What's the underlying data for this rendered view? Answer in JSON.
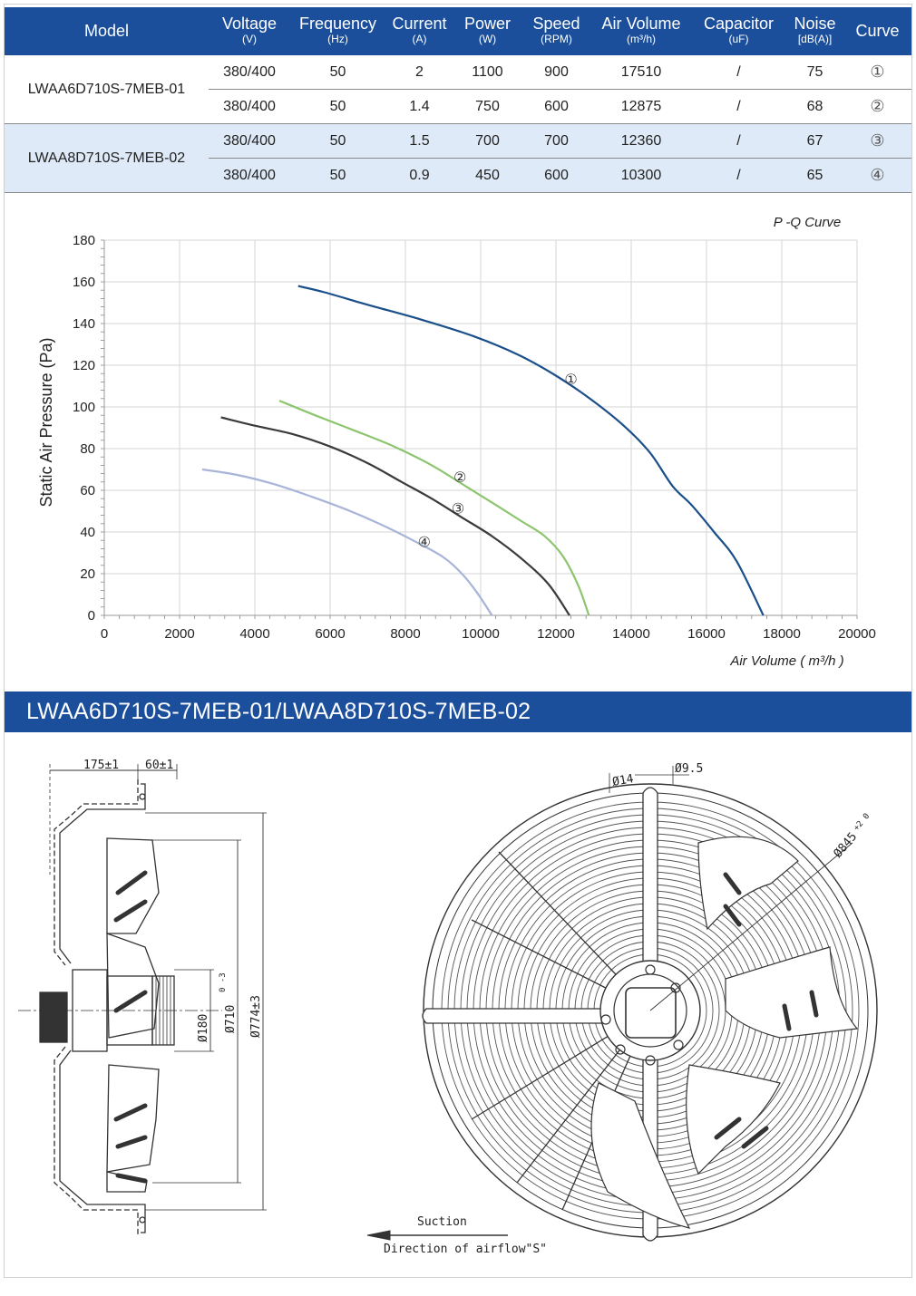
{
  "table": {
    "headers": [
      {
        "name": "Model",
        "unit": ""
      },
      {
        "name": "Voltage",
        "unit": "(V)"
      },
      {
        "name": "Frequency",
        "unit": "(Hz)"
      },
      {
        "name": "Current",
        "unit": "(A)"
      },
      {
        "name": "Power",
        "unit": "(W)"
      },
      {
        "name": "Speed",
        "unit": "(RPM)"
      },
      {
        "name": "Air Volume",
        "unit": "(m³/h)"
      },
      {
        "name": "Capacitor",
        "unit": "(uF)"
      },
      {
        "name": "Noise",
        "unit": "[dB(A)]"
      },
      {
        "name": "Curve",
        "unit": ""
      }
    ],
    "models": [
      "LWAA6D710S-7MEB-01",
      "LWAA8D710S-7MEB-02"
    ],
    "rows": [
      {
        "voltage": "380/400",
        "frequency": "50",
        "current": "2",
        "power": "1100",
        "speed": "900",
        "air_volume": "17510",
        "capacitor": "/",
        "noise": "75",
        "curve": "①"
      },
      {
        "voltage": "380/400",
        "frequency": "50",
        "current": "1.4",
        "power": "750",
        "speed": "600",
        "air_volume": "12875",
        "capacitor": "/",
        "noise": "68",
        "curve": "②"
      },
      {
        "voltage": "380/400",
        "frequency": "50",
        "current": "1.5",
        "power": "700",
        "speed": "700",
        "air_volume": "12360",
        "capacitor": "/",
        "noise": "67",
        "curve": "③"
      },
      {
        "voltage": "380/400",
        "frequency": "50",
        "current": "0.9",
        "power": "450",
        "speed": "600",
        "air_volume": "10300",
        "capacitor": "/",
        "noise": "65",
        "curve": "④"
      }
    ]
  },
  "chart_data": {
    "type": "line",
    "title": "P -Q Curve",
    "xlabel": "Air Volume ( m³/h )",
    "ylabel": "Static Air Pressure  (Pa)",
    "xlim": [
      0,
      20000
    ],
    "ylim": [
      0,
      180
    ],
    "xticks": [
      0,
      2000,
      4000,
      6000,
      8000,
      10000,
      12000,
      14000,
      16000,
      18000,
      20000
    ],
    "yticks": [
      0,
      20,
      40,
      60,
      80,
      100,
      120,
      140,
      160,
      180
    ],
    "grid": true,
    "series": [
      {
        "name": "①",
        "color": "#1b4f8a",
        "label_at": [
          12400,
          113
        ],
        "points": [
          [
            5150,
            158
          ],
          [
            5850,
            155
          ],
          [
            7000,
            149
          ],
          [
            8400,
            142
          ],
          [
            9800,
            134
          ],
          [
            11000,
            125
          ],
          [
            12000,
            115
          ],
          [
            12900,
            104
          ],
          [
            13800,
            91
          ],
          [
            14500,
            78
          ],
          [
            15100,
            62
          ],
          [
            15600,
            53
          ],
          [
            16200,
            40
          ],
          [
            16800,
            26
          ],
          [
            17510,
            0
          ]
        ]
      },
      {
        "name": "②",
        "color": "#8cc56e",
        "label_at": [
          9450,
          66
        ],
        "points": [
          [
            4650,
            103
          ],
          [
            5600,
            96
          ],
          [
            6600,
            89
          ],
          [
            7700,
            81
          ],
          [
            8700,
            72
          ],
          [
            9600,
            62
          ],
          [
            10400,
            53
          ],
          [
            11100,
            45
          ],
          [
            11700,
            38
          ],
          [
            12200,
            28
          ],
          [
            12600,
            14
          ],
          [
            12875,
            0
          ]
        ]
      },
      {
        "name": "③",
        "color": "#3a3a3a",
        "label_at": [
          9400,
          51
        ],
        "points": [
          [
            3100,
            95
          ],
          [
            4000,
            91
          ],
          [
            5000,
            87
          ],
          [
            6000,
            81
          ],
          [
            7000,
            73
          ],
          [
            7900,
            64
          ],
          [
            8700,
            56
          ],
          [
            9500,
            47
          ],
          [
            10300,
            38
          ],
          [
            11100,
            27
          ],
          [
            11800,
            15
          ],
          [
            12360,
            0
          ]
        ]
      },
      {
        "name": "④",
        "color": "#a8b4d8",
        "label_at": [
          8500,
          35
        ],
        "points": [
          [
            2600,
            70
          ],
          [
            3500,
            67.5
          ],
          [
            4500,
            63
          ],
          [
            5500,
            57
          ],
          [
            6400,
            51
          ],
          [
            7300,
            44
          ],
          [
            8200,
            36
          ],
          [
            9000,
            28
          ],
          [
            9500,
            20
          ],
          [
            9900,
            11
          ],
          [
            10300,
            0
          ]
        ]
      }
    ]
  },
  "banner": {
    "title": "LWAA6D710S-7MEB-01/LWAA8D710S-7MEB-02"
  },
  "drawing": {
    "side_labels": {
      "depth": "175±1",
      "offset": "60±1",
      "d_hub": "Ø180",
      "d_fan": "Ø710",
      "d_fan_tol": "0 -3",
      "d_outer": "Ø774±3"
    },
    "front_labels": {
      "hole_large": "Ø14",
      "hole_small": "Ø9.5",
      "d_mount": "Ø845",
      "d_mount_tol": "+2 0"
    },
    "airflow": {
      "suction": "Suction",
      "direction": "Direction of airflow\"S\""
    }
  }
}
